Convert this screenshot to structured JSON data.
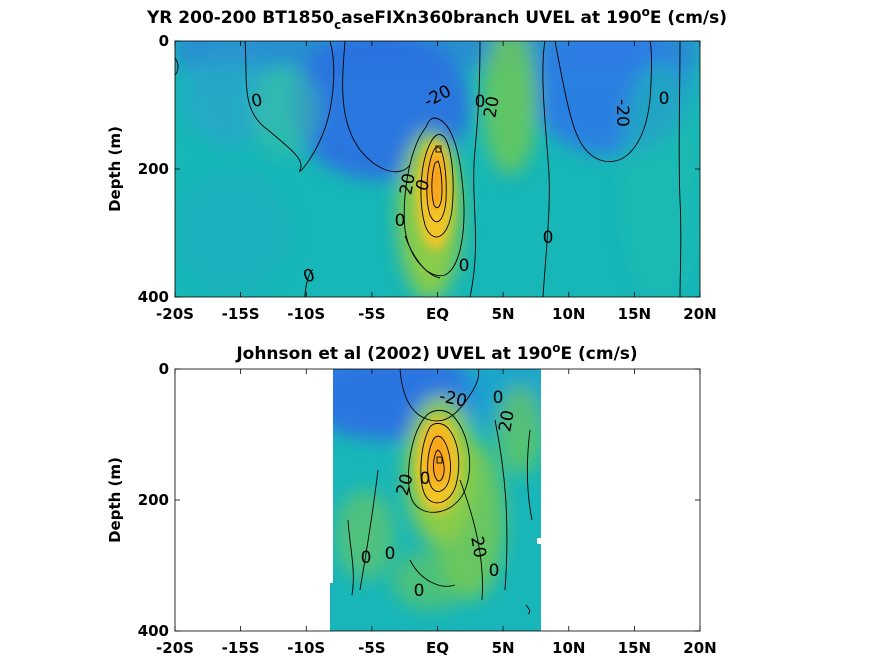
{
  "chart_data": [
    {
      "type": "heatmap",
      "title_main": "YR 200-200 BT1850",
      "title_sub": "c",
      "title_rest": "aseFIXn360branch UVEL at 190",
      "title_sup": "o",
      "title_end": "E (cm/s)",
      "ylabel": "Depth (m)",
      "x_ticks": [
        "-20S",
        "-15S",
        "-10S",
        "-5S",
        "EQ",
        "5N",
        "10N",
        "15N",
        "20N"
      ],
      "x_tick_values": [
        -20,
        -15,
        -10,
        -5,
        0,
        5,
        10,
        15,
        20
      ],
      "y_ticks": [
        "0",
        "200",
        "400"
      ],
      "y_tick_values": [
        0,
        200,
        400
      ],
      "xlim": [
        -20,
        20
      ],
      "ylim": [
        0,
        400
      ],
      "y_reversed": true,
      "x_data_range": [
        -20,
        20
      ],
      "contour_labels": [
        "0",
        "-20",
        "0",
        "20",
        "-20",
        "0",
        "20",
        "0",
        "0",
        "0",
        "0",
        "0"
      ],
      "features": [
        {
          "kind": "core",
          "x": 0,
          "y": 210,
          "value": 100
        },
        {
          "kind": "core",
          "x": 6,
          "y": 80,
          "value": 30
        },
        {
          "kind": "core",
          "x": -1,
          "y": 80,
          "value": -30
        },
        {
          "kind": "core",
          "x": 12,
          "y": 60,
          "value": -30
        }
      ]
    },
    {
      "type": "heatmap",
      "title_main": "Johnson et al (2002) UVEL at 190",
      "title_sup": "o",
      "title_end": "E (cm/s)",
      "ylabel": "Depth (m)",
      "x_ticks": [
        "-20S",
        "-15S",
        "-10S",
        "-5S",
        "EQ",
        "5N",
        "10N",
        "15N",
        "20N"
      ],
      "x_tick_values": [
        -20,
        -15,
        -10,
        -5,
        0,
        5,
        10,
        15,
        20
      ],
      "y_ticks": [
        "0",
        "200",
        "400"
      ],
      "y_tick_values": [
        0,
        200,
        400
      ],
      "xlim": [
        -20,
        20
      ],
      "ylim": [
        0,
        400
      ],
      "y_reversed": true,
      "x_data_range": [
        -8,
        8
      ],
      "contour_labels": [
        "-20",
        "20",
        "0",
        "20",
        "0",
        "0",
        "0",
        "20",
        "0",
        "0"
      ],
      "features": [
        {
          "kind": "core",
          "x": 0,
          "y": 150,
          "value": 100
        },
        {
          "kind": "core",
          "x": 0,
          "y": 50,
          "value": -30
        }
      ]
    }
  ],
  "colors": {
    "negative_strong": "#2f6fe6",
    "zero": "#17b7b7",
    "weak_positive": "#6cc857",
    "strong_positive": "#f6c42a",
    "core": "#f9a21a"
  }
}
